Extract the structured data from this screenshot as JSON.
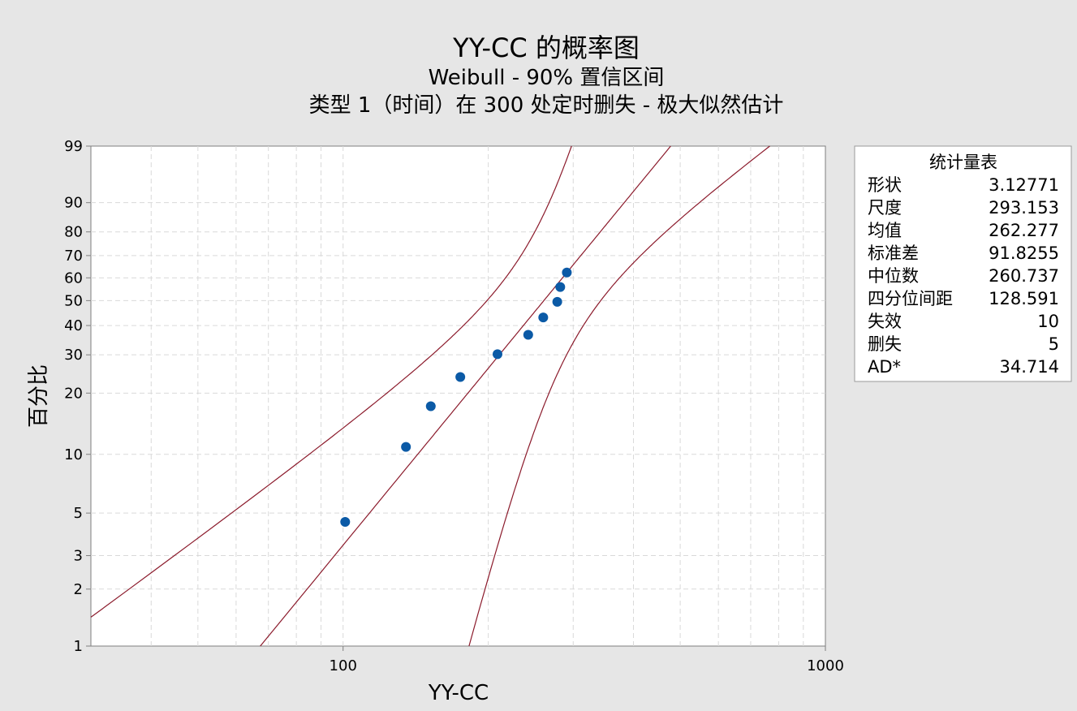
{
  "chart_data": {
    "type": "scatter",
    "title": "YY-CC 的概率图",
    "subtitle1": "Weibull - 90% 置信区间",
    "subtitle2": "类型 1（时间）在 300 处定时删失 - 极大似然估计",
    "xlabel": "YY-CC",
    "ylabel": "百分比",
    "x_scale": "log",
    "y_scale": "weibull-probability",
    "xlim": [
      30,
      1000
    ],
    "ylim": [
      1,
      99
    ],
    "x_ticks": [
      {
        "value": 100,
        "label": "100"
      },
      {
        "value": 1000,
        "label": "1000"
      }
    ],
    "y_ticks": [
      {
        "value": 1,
        "label": "1"
      },
      {
        "value": 2,
        "label": "2"
      },
      {
        "value": 3,
        "label": "3"
      },
      {
        "value": 5,
        "label": "5"
      },
      {
        "value": 10,
        "label": "10"
      },
      {
        "value": 20,
        "label": "20"
      },
      {
        "value": 30,
        "label": "30"
      },
      {
        "value": 40,
        "label": "40"
      },
      {
        "value": 50,
        "label": "50"
      },
      {
        "value": 60,
        "label": "60"
      },
      {
        "value": 70,
        "label": "70"
      },
      {
        "value": 80,
        "label": "80"
      },
      {
        "value": 90,
        "label": "90"
      },
      {
        "value": 99,
        "label": "99"
      }
    ],
    "grid": true,
    "points": [
      {
        "x": 101,
        "y": 4.5
      },
      {
        "x": 135,
        "y": 10.9
      },
      {
        "x": 152,
        "y": 17.3
      },
      {
        "x": 175,
        "y": 23.8
      },
      {
        "x": 209,
        "y": 30.2
      },
      {
        "x": 242,
        "y": 36.6
      },
      {
        "x": 260,
        "y": 43.1
      },
      {
        "x": 278,
        "y": 49.5
      },
      {
        "x": 282,
        "y": 55.9
      },
      {
        "x": 291,
        "y": 62.4
      }
    ],
    "fit": {
      "shape": 3.12771,
      "scale": 293.153
    },
    "ci_level": 0.9,
    "colors": {
      "points": "#0b5aa6",
      "lines": "#8b1a2b",
      "grid": "#d9d9d9"
    },
    "stats_table": {
      "title": "统计量表",
      "rows": [
        {
          "label": "形状",
          "value": "3.12771"
        },
        {
          "label": "尺度",
          "value": "293.153"
        },
        {
          "label": "均值",
          "value": "262.277"
        },
        {
          "label": "标准差",
          "value": "91.8255"
        },
        {
          "label": "中位数",
          "value": "260.737"
        },
        {
          "label": "四分位间距",
          "value": "128.591"
        },
        {
          "label": "失效",
          "value": "10"
        },
        {
          "label": "删失",
          "value": "5"
        },
        {
          "label": "AD*",
          "value": "34.714"
        }
      ]
    }
  }
}
